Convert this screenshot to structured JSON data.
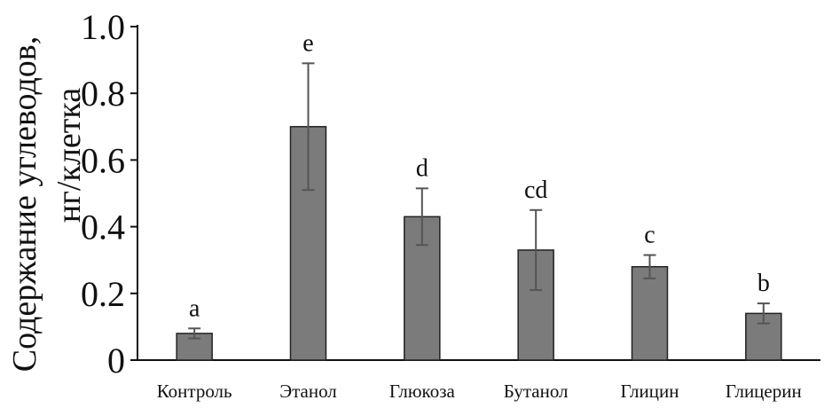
{
  "chart_data": {
    "type": "bar",
    "categories": [
      "Контроль",
      "Этанол",
      "Глюкоза",
      "Бутанол",
      "Глицин",
      "Глицерин"
    ],
    "values": [
      0.08,
      0.7,
      0.43,
      0.33,
      0.28,
      0.14
    ],
    "errors": [
      0.015,
      0.19,
      0.085,
      0.12,
      0.035,
      0.03
    ],
    "annotations": [
      "a",
      "e",
      "d",
      "cd",
      "c",
      "b"
    ],
    "ylabel_line1": "Содержание углеводов,",
    "ylabel_line2": "нг/клетка",
    "ylim": [
      0,
      1.0
    ],
    "yticks": [
      "0",
      "0.2",
      "0.4",
      "0.6",
      "0.8",
      "1.0"
    ],
    "grid": false,
    "colors": {
      "bar": "#7b7b7b",
      "bar_stroke": "#222222",
      "axis": "#111111",
      "error": "#555555"
    }
  }
}
